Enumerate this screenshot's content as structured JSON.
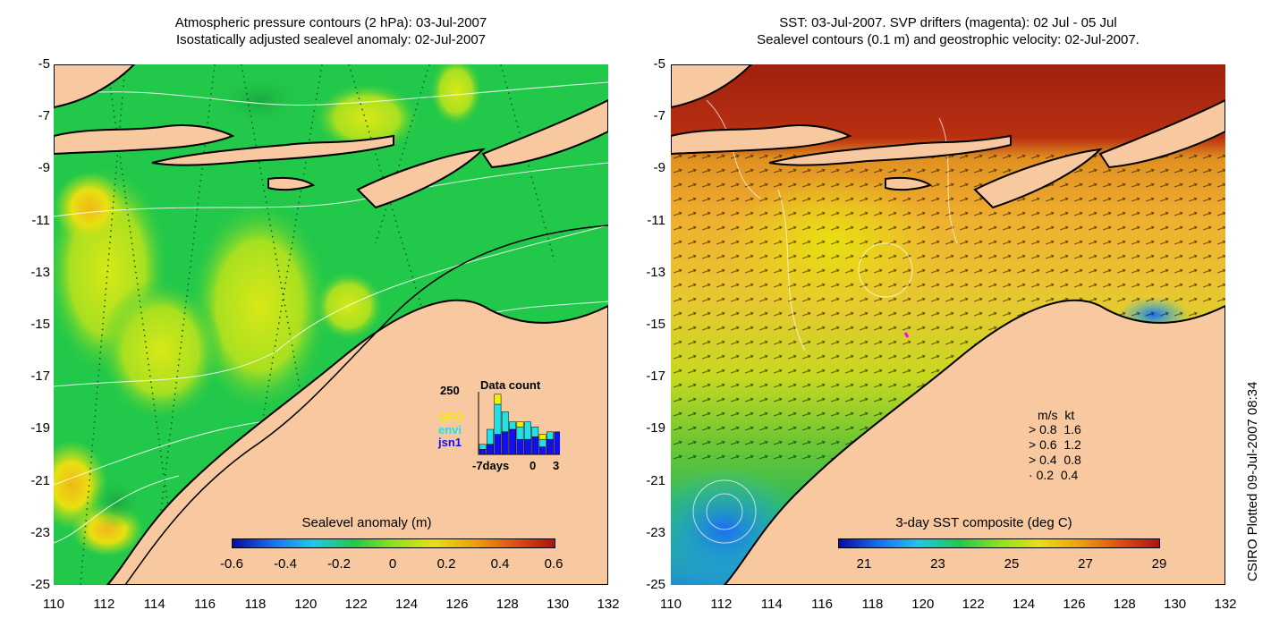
{
  "left_panel": {
    "title_line1": "Atmospheric pressure contours (2 hPa): 03-Jul-2007",
    "title_line2": "Isostatically adjusted sealevel anomaly: 02-Jul-2007",
    "colorbar": {
      "label": "Sealevel anomaly (m)",
      "ticks": [
        "-0.6",
        "-0.4",
        "-0.2",
        "0",
        "0.2",
        "0.4",
        "0.6"
      ],
      "colors": [
        "#0a0aa0",
        "#1a6ef0",
        "#20c8e8",
        "#22c84a",
        "#8ee020",
        "#e8e010",
        "#f0a010",
        "#e05010",
        "#b01010"
      ]
    },
    "data_count": {
      "title": "Data count",
      "ymax_label": "250",
      "sat_labels": [
        "GFO",
        "envi",
        "jsn1"
      ],
      "sat_colors": [
        "#f0f000",
        "#20e0e8",
        "#1010f0"
      ],
      "xticks": [
        "-7days",
        "0",
        "3"
      ],
      "bars": [
        {
          "jsn1": 20,
          "envi": 20,
          "gfo": 0
        },
        {
          "jsn1": 40,
          "envi": 60,
          "gfo": 0
        },
        {
          "jsn1": 80,
          "envi": 120,
          "gfo": 40
        },
        {
          "jsn1": 90,
          "envi": 80,
          "gfo": 0
        },
        {
          "jsn1": 100,
          "envi": 30,
          "gfo": 0
        },
        {
          "jsn1": 60,
          "envi": 50,
          "gfo": 20
        },
        {
          "jsn1": 60,
          "envi": 70,
          "gfo": 0
        },
        {
          "jsn1": 70,
          "envi": 40,
          "gfo": 0
        },
        {
          "jsn1": 30,
          "envi": 30,
          "gfo": 20
        },
        {
          "jsn1": 60,
          "envi": 30,
          "gfo": 0
        },
        {
          "jsn1": 90,
          "envi": 0,
          "gfo": 0
        }
      ]
    }
  },
  "right_panel": {
    "title_line1": "SST: 03-Jul-2007. SVP drifters (magenta): 02 Jul - 05 Jul",
    "title_line2": "Sealevel contours (0.1 m) and geostrophic velocity: 02-Jul-2007.",
    "colorbar": {
      "label": "3-day SST composite (deg C)",
      "ticks": [
        "21",
        "23",
        "25",
        "27",
        "29"
      ],
      "colors": [
        "#0a0aa0",
        "#1a6ef0",
        "#20c8e8",
        "#22c84a",
        "#8ee020",
        "#e8e010",
        "#f0a010",
        "#e05010",
        "#b01010"
      ]
    },
    "speed_legend": {
      "header_ms": "m/s",
      "header_kt": "kt",
      "rows": [
        {
          "ms": "0.8",
          "kt": "1.6"
        },
        {
          "ms": "0.6",
          "kt": "1.2"
        },
        {
          "ms": "0.4",
          "kt": "0.8"
        },
        {
          "ms": "0.2",
          "kt": "0.4"
        }
      ]
    }
  },
  "axes": {
    "lat_ticks": [
      "-5",
      "-7",
      "-9",
      "-11",
      "-13",
      "-15",
      "-17",
      "-19",
      "-21",
      "-23",
      "-25"
    ],
    "lon_ticks": [
      "110",
      "112",
      "114",
      "116",
      "118",
      "120",
      "122",
      "124",
      "126",
      "128",
      "130",
      "132"
    ]
  },
  "credit": "CSIRO Plotted 09-Jul-2007 08:34",
  "colors": {
    "land": "#f8c8a0",
    "ocean_left": "#22c84a",
    "sst_warm": "#a02010",
    "sst_mid": "#e8a030"
  }
}
